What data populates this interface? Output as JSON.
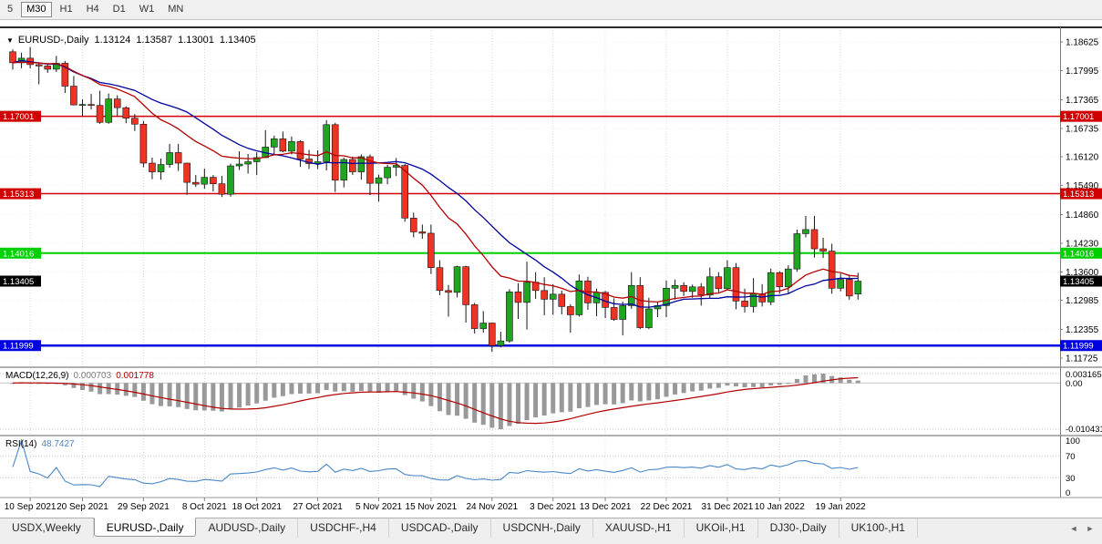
{
  "colors": {
    "up": "#1fa51f",
    "down": "#ee3224",
    "wick": "#161616",
    "grid": "#d9d9d9",
    "axis": "#808080",
    "chart_top_border": "#2a2a2a"
  },
  "toolbar": {
    "timeframes": [
      {
        "label": "5",
        "active": false
      },
      {
        "label": "M30",
        "active": true
      },
      {
        "label": "H1",
        "active": false
      },
      {
        "label": "H4",
        "active": false
      },
      {
        "label": "D1",
        "active": false
      },
      {
        "label": "W1",
        "active": false
      },
      {
        "label": "MN",
        "active": false
      }
    ]
  },
  "chart_header": {
    "dropdown_icon": "▼",
    "symbol": "EURUSD-,Daily",
    "open": "1.13124",
    "high": "1.13587",
    "low": "1.13001",
    "close": "1.13405"
  },
  "hlines": [
    {
      "label": "1.17001",
      "value": 1.17001,
      "color": "#d10000",
      "width": 1.5
    },
    {
      "label": "1.15313",
      "value": 1.15313,
      "color": "#d10000",
      "width": 1.5
    },
    {
      "label": "1.14016",
      "value": 1.14016,
      "color": "#00cf00",
      "width": 2
    },
    {
      "label": "1.11999",
      "value": 1.11999,
      "color": "#0000e0",
      "width": 2.5
    }
  ],
  "current_price": {
    "label": "1.13405",
    "value": 1.13405,
    "color": "#000000"
  },
  "chart_data": {
    "type": "candlestick",
    "title": "EURUSD-,Daily",
    "y_axis": {
      "labels": [
        "1.18625",
        "1.17995",
        "1.17365",
        "1.16735",
        "1.16120",
        "1.15490",
        "1.14860",
        "1.14230",
        "1.13600",
        "1.12985",
        "1.12355",
        "1.11725"
      ]
    },
    "x_ticks": [
      {
        "index": 2,
        "label": "10 Sep 2021"
      },
      {
        "index": 8,
        "label": "20 Sep 2021"
      },
      {
        "index": 15,
        "label": "29 Sep 2021"
      },
      {
        "index": 22,
        "label": "8 Oct 2021"
      },
      {
        "index": 28,
        "label": "18 Oct 2021"
      },
      {
        "index": 35,
        "label": "27 Oct 2021"
      },
      {
        "index": 42,
        "label": "5 Nov 2021"
      },
      {
        "index": 48,
        "label": "15 Nov 2021"
      },
      {
        "index": 55,
        "label": "24 Nov 2021"
      },
      {
        "index": 62,
        "label": "3 Dec 2021"
      },
      {
        "index": 68,
        "label": "13 Dec 2021"
      },
      {
        "index": 75,
        "label": "22 Dec 2021"
      },
      {
        "index": 82,
        "label": "31 Dec 2021"
      },
      {
        "index": 88,
        "label": "10 Jan 2022"
      },
      {
        "index": 95,
        "label": "19 Jan 2022"
      }
    ],
    "candles": [
      [
        1.1841,
        1.1846,
        1.1802,
        1.1817
      ],
      [
        1.1817,
        1.1839,
        1.1805,
        1.1827
      ],
      [
        1.1827,
        1.1851,
        1.1805,
        1.1813
      ],
      [
        1.1813,
        1.1818,
        1.177,
        1.181
      ],
      [
        1.181,
        1.1814,
        1.1795,
        1.1803
      ],
      [
        1.1803,
        1.1832,
        1.1797,
        1.1816
      ],
      [
        1.1816,
        1.1821,
        1.1751,
        1.1766
      ],
      [
        1.1766,
        1.1788,
        1.1724,
        1.1725
      ],
      [
        1.1725,
        1.1737,
        1.17,
        1.1726
      ],
      [
        1.1726,
        1.1749,
        1.1715,
        1.1724
      ],
      [
        1.1724,
        1.1756,
        1.1684,
        1.1687
      ],
      [
        1.1687,
        1.175,
        1.1684,
        1.1738
      ],
      [
        1.1738,
        1.1746,
        1.1701,
        1.1719
      ],
      [
        1.1719,
        1.1722,
        1.1685,
        1.1696
      ],
      [
        1.1696,
        1.1705,
        1.1668,
        1.1683
      ],
      [
        1.1683,
        1.169,
        1.1589,
        1.1598
      ],
      [
        1.1598,
        1.161,
        1.1563,
        1.1579
      ],
      [
        1.1579,
        1.1608,
        1.1562,
        1.1595
      ],
      [
        1.1595,
        1.164,
        1.1588,
        1.1621
      ],
      [
        1.1621,
        1.164,
        1.1581,
        1.1598
      ],
      [
        1.1598,
        1.1599,
        1.1529,
        1.1556
      ],
      [
        1.1556,
        1.1572,
        1.1546,
        1.1552
      ],
      [
        1.1552,
        1.1586,
        1.1542,
        1.1567
      ],
      [
        1.1567,
        1.1572,
        1.1536,
        1.1553
      ],
      [
        1.1553,
        1.157,
        1.1524,
        1.153
      ],
      [
        1.153,
        1.1597,
        1.1525,
        1.1592
      ],
      [
        1.1592,
        1.1624,
        1.1583,
        1.1596
      ],
      [
        1.1596,
        1.1618,
        1.1575,
        1.1601
      ],
      [
        1.1601,
        1.1622,
        1.1572,
        1.161
      ],
      [
        1.161,
        1.167,
        1.1609,
        1.1633
      ],
      [
        1.1633,
        1.1658,
        1.1617,
        1.1651
      ],
      [
        1.1651,
        1.1667,
        1.1622,
        1.1624
      ],
      [
        1.1624,
        1.1656,
        1.1617,
        1.1645
      ],
      [
        1.1645,
        1.1648,
        1.159,
        1.1607
      ],
      [
        1.1607,
        1.1627,
        1.1585,
        1.1597
      ],
      [
        1.1597,
        1.1626,
        1.1585,
        1.1601
      ],
      [
        1.1601,
        1.1692,
        1.1582,
        1.1682
      ],
      [
        1.1682,
        1.1686,
        1.1535,
        1.1561
      ],
      [
        1.1561,
        1.161,
        1.1545,
        1.1606
      ],
      [
        1.1606,
        1.1612,
        1.1572,
        1.1579
      ],
      [
        1.1579,
        1.1617,
        1.1562,
        1.1612
      ],
      [
        1.1612,
        1.1617,
        1.1528,
        1.1554
      ],
      [
        1.1554,
        1.1573,
        1.1514,
        1.1566
      ],
      [
        1.1566,
        1.1594,
        1.1552,
        1.1589
      ],
      [
        1.1589,
        1.1609,
        1.157,
        1.1593
      ],
      [
        1.1593,
        1.1596,
        1.147,
        1.1478
      ],
      [
        1.1478,
        1.149,
        1.1436,
        1.1448
      ],
      [
        1.1448,
        1.1464,
        1.1433,
        1.1445
      ],
      [
        1.1445,
        1.1464,
        1.1356,
        1.137
      ],
      [
        1.137,
        1.1386,
        1.131,
        1.132
      ],
      [
        1.132,
        1.1332,
        1.1263,
        1.1316
      ],
      [
        1.1316,
        1.1374,
        1.1305,
        1.1372
      ],
      [
        1.1372,
        1.1374,
        1.125,
        1.1289
      ],
      [
        1.1289,
        1.1293,
        1.1226,
        1.1237
      ],
      [
        1.1237,
        1.1275,
        1.1228,
        1.1249
      ],
      [
        1.1249,
        1.125,
        1.1186,
        1.12
      ],
      [
        1.12,
        1.123,
        1.1196,
        1.121
      ],
      [
        1.121,
        1.1323,
        1.1206,
        1.1317
      ],
      [
        1.1317,
        1.1336,
        1.1258,
        1.1294
      ],
      [
        1.1294,
        1.1383,
        1.1235,
        1.1338
      ],
      [
        1.1338,
        1.136,
        1.1302,
        1.132
      ],
      [
        1.132,
        1.1349,
        1.1266,
        1.1301
      ],
      [
        1.1301,
        1.1334,
        1.1267,
        1.1312
      ],
      [
        1.1312,
        1.132,
        1.1268,
        1.1285
      ],
      [
        1.1285,
        1.129,
        1.1228,
        1.1267
      ],
      [
        1.1267,
        1.1355,
        1.1263,
        1.1341
      ],
      [
        1.1341,
        1.135,
        1.1278,
        1.1293
      ],
      [
        1.1293,
        1.1324,
        1.1264,
        1.1316
      ],
      [
        1.1316,
        1.1319,
        1.126,
        1.1283
      ],
      [
        1.1283,
        1.1303,
        1.1254,
        1.1257
      ],
      [
        1.1257,
        1.1296,
        1.1222,
        1.1287
      ],
      [
        1.1287,
        1.136,
        1.128,
        1.1331
      ],
      [
        1.1331,
        1.1349,
        1.1236,
        1.1239
      ],
      [
        1.1239,
        1.1304,
        1.1236,
        1.128
      ],
      [
        1.128,
        1.1294,
        1.1262,
        1.1287
      ],
      [
        1.1287,
        1.1342,
        1.1262,
        1.1325
      ],
      [
        1.1325,
        1.1344,
        1.13,
        1.1331
      ],
      [
        1.1331,
        1.1338,
        1.1308,
        1.1318
      ],
      [
        1.1318,
        1.1333,
        1.1304,
        1.1328
      ],
      [
        1.1328,
        1.1336,
        1.1287,
        1.131
      ],
      [
        1.131,
        1.137,
        1.1303,
        1.135
      ],
      [
        1.135,
        1.136,
        1.1316,
        1.1324
      ],
      [
        1.1324,
        1.1386,
        1.1321,
        1.137
      ],
      [
        1.137,
        1.138,
        1.1279,
        1.1297
      ],
      [
        1.1297,
        1.1324,
        1.1272,
        1.1285
      ],
      [
        1.1285,
        1.1347,
        1.1272,
        1.1313
      ],
      [
        1.1313,
        1.1334,
        1.1285,
        1.1295
      ],
      [
        1.1295,
        1.1368,
        1.1288,
        1.1359
      ],
      [
        1.1359,
        1.1362,
        1.1313,
        1.1328
      ],
      [
        1.1328,
        1.1375,
        1.1314,
        1.1367
      ],
      [
        1.1367,
        1.1453,
        1.1361,
        1.1444
      ],
      [
        1.1444,
        1.1483,
        1.1436,
        1.1453
      ],
      [
        1.1453,
        1.1483,
        1.1392,
        1.1411
      ],
      [
        1.1411,
        1.1435,
        1.1391,
        1.1406
      ],
      [
        1.1406,
        1.1422,
        1.1313,
        1.1325
      ],
      [
        1.1325,
        1.1357,
        1.1318,
        1.1344
      ],
      [
        1.1344,
        1.1354,
        1.13,
        1.1308
      ],
      [
        1.13124,
        1.13587,
        1.13001,
        1.13405
      ]
    ],
    "indicators": {
      "ma_fast": {
        "method": "ema",
        "period": 15,
        "color": "#b30000"
      },
      "ma_slow": {
        "method": "sma",
        "period": 21,
        "color": "#0000a0"
      },
      "macd": {
        "label": "MACD(12,26,9)",
        "value": "0.000703",
        "signal": "0.001778",
        "fast": 12,
        "slow": 26,
        "signal_period": 9,
        "axis_labels": [
          "0.003165",
          "0.00",
          "-0.010431"
        ],
        "hist_color": "#999999",
        "signal_color": "#b30000"
      },
      "rsi": {
        "label": "RSI(14)",
        "period": 14,
        "value": "48.7427",
        "axis_labels": [
          "100",
          "70",
          "30",
          "0"
        ],
        "levels": [
          70,
          30
        ],
        "color": "#4a86c8"
      }
    }
  },
  "tabs": [
    {
      "label": "USDX,Weekly",
      "active": false
    },
    {
      "label": "EURUSD-,Daily",
      "active": true
    },
    {
      "label": "AUDUSD-,Daily",
      "active": false
    },
    {
      "label": "USDCHF-,H4",
      "active": false
    },
    {
      "label": "USDCAD-,Daily",
      "active": false
    },
    {
      "label": "USDCNH-,Daily",
      "active": false
    },
    {
      "label": "XAUUSD-,H1",
      "active": false
    },
    {
      "label": "UKOil-,H1",
      "active": false
    },
    {
      "label": "DJ30-,Daily",
      "active": false
    },
    {
      "label": "UK100-,H1",
      "active": false
    }
  ],
  "tab_scroll": {
    "left": "◄",
    "right": "►"
  }
}
